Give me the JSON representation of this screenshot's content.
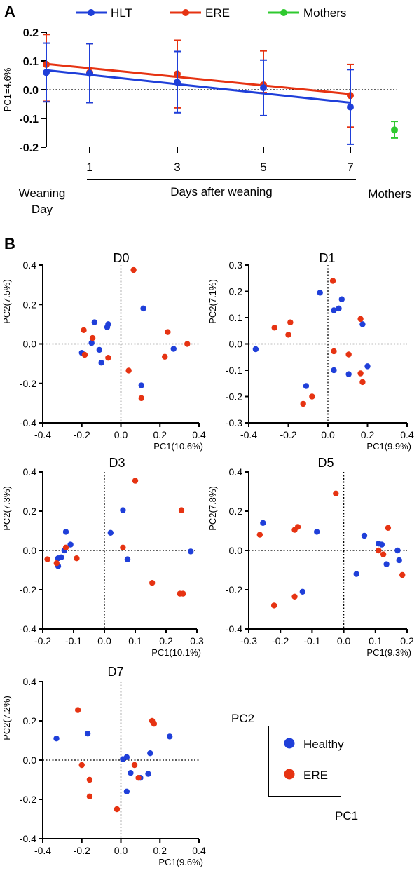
{
  "panel_labels": {
    "a": "A",
    "b": "B"
  },
  "colors": {
    "hlt": "#1f3fd9",
    "ere": "#e63312",
    "mothers": "#2fc92f",
    "healthy_dot": "#1f3fd9",
    "ere_dot": "#e63312"
  },
  "chart_data": [
    {
      "type": "line",
      "panel": "A",
      "legend": {
        "position": "top",
        "entries": [
          "HLT",
          "ERE",
          "Mothers"
        ]
      },
      "ylabel": "PC1=4.6%",
      "ylim": [
        -0.2,
        0.2
      ],
      "yticks": [
        "0.2",
        "0.1",
        "0.0",
        "-0.1",
        "-0.2"
      ],
      "xticks": [
        "1",
        "3",
        "5",
        "7"
      ],
      "x_category_labels": {
        "weaning": "Weaning\nDay",
        "days": "Days after weaning",
        "mothers": "Mothers"
      },
      "series": [
        {
          "name": "HLT",
          "x": [
            0,
            1,
            3,
            5,
            7
          ],
          "mean": [
            0.06,
            0.057,
            0.026,
            0.007,
            -0.06
          ],
          "err_low": [
            -0.042,
            -0.045,
            -0.08,
            -0.09,
            -0.19
          ],
          "err_high": [
            0.162,
            0.16,
            0.133,
            0.103,
            0.07
          ],
          "trend": [
            0.068,
            -0.045
          ]
        },
        {
          "name": "ERE",
          "x": [
            0,
            1,
            3,
            5,
            7
          ],
          "mean": [
            0.088,
            0.06,
            0.055,
            0.017,
            -0.02
          ],
          "err_low": [
            -0.04,
            -0.045,
            -0.063,
            -0.01,
            -0.13
          ],
          "err_high": [
            0.192,
            0.16,
            0.172,
            0.135,
            0.088
          ],
          "trend": [
            0.09,
            -0.015
          ]
        },
        {
          "name": "Mothers",
          "x": [
            8
          ],
          "mean": [
            -0.14
          ],
          "err_low": [
            -0.168
          ],
          "err_high": [
            -0.11
          ]
        }
      ]
    },
    {
      "type": "scatter",
      "title": "D0",
      "xlabel": "PC1(10.6%)",
      "ylabel": "PC2(7.5%)",
      "xlim": [
        -0.4,
        0.4
      ],
      "ylim": [
        -0.4,
        0.4
      ],
      "xticks": [
        "-0.4",
        "-0.2",
        "0.0",
        "0.2",
        "0.4"
      ],
      "yticks": [
        "0.4",
        "0.2",
        "0.0",
        "-0.2",
        "-0.4"
      ],
      "series": [
        {
          "name": "Healthy",
          "points": [
            [
              0.115,
              0.18
            ],
            [
              -0.135,
              0.11
            ],
            [
              -0.07,
              0.085
            ],
            [
              -0.065,
              0.1
            ],
            [
              -0.15,
              0.005
            ],
            [
              -0.11,
              -0.03
            ],
            [
              -0.2,
              -0.045
            ],
            [
              -0.1,
              -0.095
            ],
            [
              0.27,
              -0.025
            ],
            [
              0.105,
              -0.21
            ]
          ]
        },
        {
          "name": "ERE",
          "points": [
            [
              0.065,
              0.375
            ],
            [
              -0.19,
              0.07
            ],
            [
              -0.145,
              0.03
            ],
            [
              0.24,
              0.06
            ],
            [
              0.34,
              0.0
            ],
            [
              -0.185,
              -0.055
            ],
            [
              -0.065,
              -0.07
            ],
            [
              0.225,
              -0.065
            ],
            [
              0.04,
              -0.135
            ],
            [
              0.105,
              -0.275
            ]
          ]
        }
      ]
    },
    {
      "type": "scatter",
      "title": "D1",
      "xlabel": "PC1(9.9%)",
      "ylabel": "PC2(7.1%)",
      "xlim": [
        -0.4,
        0.4
      ],
      "ylim": [
        -0.3,
        0.3
      ],
      "xticks": [
        "-0.4",
        "-0.2",
        "0.0",
        "0.2",
        "0.4"
      ],
      "yticks": [
        "0.3",
        "0.2",
        "0.1",
        "0.0",
        "-0.1",
        "-0.2",
        "-0.3"
      ],
      "series": [
        {
          "name": "Healthy",
          "points": [
            [
              -0.04,
              0.195
            ],
            [
              0.07,
              0.17
            ],
            [
              0.055,
              0.135
            ],
            [
              0.03,
              0.128
            ],
            [
              0.175,
              0.075
            ],
            [
              -0.365,
              -0.02
            ],
            [
              0.2,
              -0.085
            ],
            [
              0.105,
              -0.115
            ],
            [
              0.03,
              -0.1
            ],
            [
              -0.11,
              -0.16
            ]
          ]
        },
        {
          "name": "ERE",
          "points": [
            [
              0.025,
              0.24
            ],
            [
              0.165,
              0.095
            ],
            [
              -0.27,
              0.062
            ],
            [
              -0.19,
              0.082
            ],
            [
              -0.2,
              0.035
            ],
            [
              0.03,
              -0.028
            ],
            [
              0.105,
              -0.04
            ],
            [
              0.165,
              -0.112
            ],
            [
              0.175,
              -0.145
            ],
            [
              -0.08,
              -0.2
            ],
            [
              -0.125,
              -0.228
            ]
          ]
        }
      ]
    },
    {
      "type": "scatter",
      "title": "D3",
      "xlabel": "PC1(10.1%)",
      "ylabel": "PC2(7.3%)",
      "xlim": [
        -0.2,
        0.3
      ],
      "ylim": [
        -0.4,
        0.4
      ],
      "xticks": [
        "-0.2",
        "-0.1",
        "0.0",
        "0.1",
        "0.2",
        "0.3"
      ],
      "yticks": [
        "0.4",
        "0.2",
        "0.0",
        "-0.2",
        "-0.4"
      ],
      "series": [
        {
          "name": "Healthy",
          "points": [
            [
              0.06,
              0.205
            ],
            [
              0.02,
              0.09
            ],
            [
              -0.125,
              0.095
            ],
            [
              -0.11,
              0.03
            ],
            [
              -0.14,
              -0.035
            ],
            [
              -0.15,
              -0.04
            ],
            [
              -0.15,
              -0.08
            ],
            [
              -0.13,
              0.0
            ],
            [
              0.075,
              -0.045
            ],
            [
              0.28,
              -0.005
            ]
          ]
        },
        {
          "name": "ERE",
          "points": [
            [
              0.1,
              0.355
            ],
            [
              0.25,
              0.205
            ],
            [
              -0.125,
              0.015
            ],
            [
              0.06,
              0.015
            ],
            [
              -0.185,
              -0.045
            ],
            [
              -0.09,
              -0.04
            ],
            [
              -0.155,
              -0.065
            ],
            [
              0.155,
              -0.165
            ],
            [
              0.245,
              -0.22
            ],
            [
              0.255,
              -0.22
            ]
          ]
        }
      ]
    },
    {
      "type": "scatter",
      "title": "D5",
      "xlabel": "PC1(9.3%)",
      "ylabel": "PC2(7.8%)",
      "xlim": [
        -0.3,
        0.2
      ],
      "ylim": [
        -0.4,
        0.4
      ],
      "xticks": [
        "-0.3",
        "-0.2",
        "-0.1",
        "0.0",
        "0.1",
        "0.2"
      ],
      "yticks": [
        "0.4",
        "0.2",
        "0.0",
        "-0.2",
        "-0.4"
      ],
      "series": [
        {
          "name": "Healthy",
          "points": [
            [
              -0.255,
              0.14
            ],
            [
              -0.085,
              0.095
            ],
            [
              0.065,
              0.075
            ],
            [
              0.11,
              0.035
            ],
            [
              0.12,
              0.03
            ],
            [
              0.17,
              0.0
            ],
            [
              0.175,
              -0.05
            ],
            [
              0.135,
              -0.07
            ],
            [
              0.04,
              -0.12
            ],
            [
              -0.13,
              -0.21
            ]
          ]
        },
        {
          "name": "ERE",
          "points": [
            [
              -0.025,
              0.29
            ],
            [
              -0.145,
              0.12
            ],
            [
              -0.155,
              0.105
            ],
            [
              0.14,
              0.115
            ],
            [
              -0.265,
              0.08
            ],
            [
              0.11,
              0.0
            ],
            [
              0.125,
              -0.02
            ],
            [
              0.185,
              -0.125
            ],
            [
              -0.155,
              -0.235
            ],
            [
              -0.22,
              -0.28
            ]
          ]
        }
      ]
    },
    {
      "type": "scatter",
      "title": "D7",
      "xlabel": "PC1(9.6%)",
      "ylabel": "PC2(7.2%)",
      "xlim": [
        -0.4,
        0.4
      ],
      "ylim": [
        -0.4,
        0.4
      ],
      "xticks": [
        "-0.4",
        "-0.2",
        "0.0",
        "0.2",
        "0.4"
      ],
      "yticks": [
        "0.4",
        "0.2",
        "0.0",
        "-0.2",
        "-0.4"
      ],
      "series": [
        {
          "name": "Healthy",
          "points": [
            [
              -0.33,
              0.11
            ],
            [
              -0.17,
              0.135
            ],
            [
              0.25,
              0.12
            ],
            [
              0.15,
              0.035
            ],
            [
              0.03,
              0.015
            ],
            [
              0.01,
              0.005
            ],
            [
              0.05,
              -0.065
            ],
            [
              0.1,
              -0.09
            ],
            [
              0.14,
              -0.07
            ],
            [
              0.03,
              -0.16
            ]
          ]
        },
        {
          "name": "ERE",
          "points": [
            [
              -0.22,
              0.255
            ],
            [
              0.16,
              0.2
            ],
            [
              0.17,
              0.185
            ],
            [
              -0.2,
              -0.025
            ],
            [
              0.07,
              -0.025
            ],
            [
              -0.16,
              -0.1
            ],
            [
              0.09,
              -0.09
            ],
            [
              -0.16,
              -0.185
            ],
            [
              -0.02,
              -0.25
            ]
          ]
        }
      ]
    }
  ],
  "key": {
    "pc2_label": "PC2",
    "pc1_label": "PC1",
    "entries": [
      "Healthy",
      "ERE"
    ]
  }
}
